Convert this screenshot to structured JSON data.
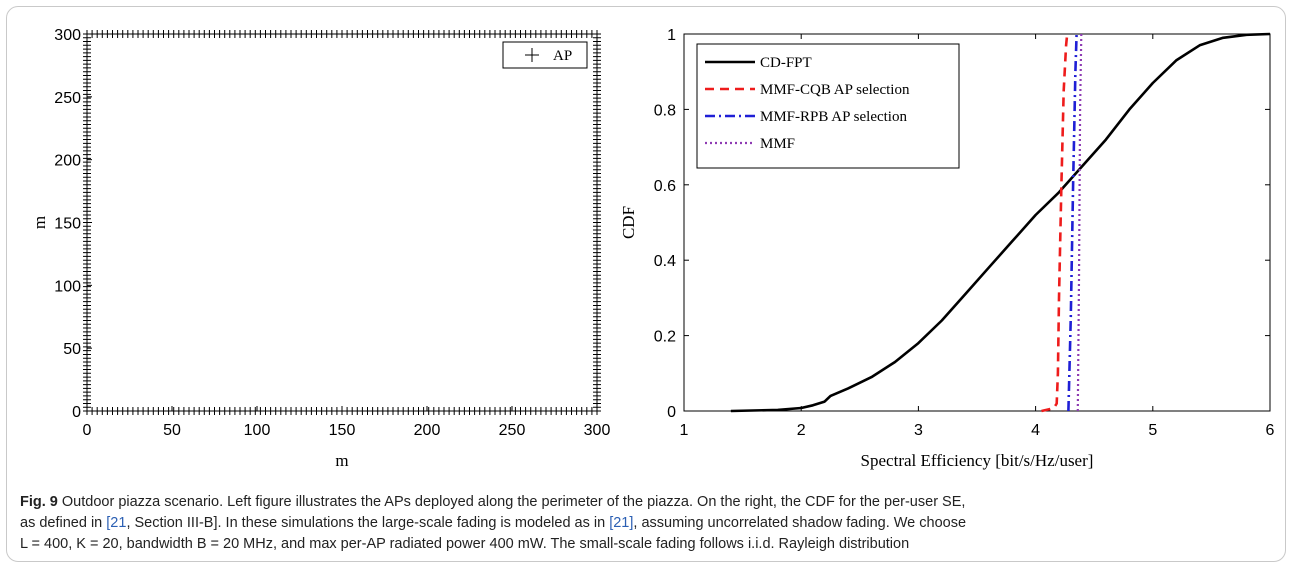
{
  "chart_data": [
    {
      "type": "scatter",
      "title": "",
      "xlabel": "m",
      "ylabel": "m",
      "xlim": [
        0,
        300
      ],
      "ylim": [
        0,
        300
      ],
      "xticks": [
        0,
        50,
        100,
        150,
        200,
        250,
        300
      ],
      "yticks": [
        0,
        50,
        100,
        150,
        200,
        250,
        300
      ],
      "legend": {
        "position": "top-right",
        "entries": [
          "AP"
        ]
      },
      "series": [
        {
          "name": "AP",
          "marker": "+",
          "color": "#000000",
          "layout": "100 APs evenly spaced along each side of the 300 m x 300 m square perimeter (L = 400)",
          "count": 400
        }
      ]
    },
    {
      "type": "line",
      "title": "",
      "xlabel": "Spectral Efficiency [bit/s/Hz/user]",
      "ylabel": "CDF",
      "xlim": [
        1,
        6
      ],
      "ylim": [
        0,
        1
      ],
      "xticks": [
        1,
        2,
        3,
        4,
        5,
        6
      ],
      "yticks": [
        0,
        0.2,
        0.4,
        0.6,
        0.8,
        1
      ],
      "legend": {
        "position": "top-left"
      },
      "series": [
        {
          "name": "CD-FPT",
          "color": "#000000",
          "style": "solid",
          "x": [
            1.4,
            1.8,
            2.0,
            2.1,
            2.2,
            2.25,
            2.4,
            2.6,
            2.8,
            3.0,
            3.2,
            3.4,
            3.6,
            3.8,
            4.0,
            4.2,
            4.4,
            4.6,
            4.8,
            5.0,
            5.2,
            5.4,
            5.6,
            5.8,
            6.0
          ],
          "y": [
            0.0,
            0.003,
            0.008,
            0.015,
            0.025,
            0.04,
            0.06,
            0.09,
            0.13,
            0.18,
            0.24,
            0.31,
            0.38,
            0.45,
            0.52,
            0.58,
            0.65,
            0.72,
            0.8,
            0.87,
            0.93,
            0.97,
            0.99,
            0.998,
            1.0
          ]
        },
        {
          "name": "MMF-CQB AP selection",
          "color": "#ee1c1c",
          "style": "dashed",
          "x": [
            4.05,
            4.12,
            4.16,
            4.18,
            4.19,
            4.2,
            4.22,
            4.24,
            4.26,
            4.27
          ],
          "y": [
            0.0,
            0.005,
            0.01,
            0.02,
            0.1,
            0.3,
            0.6,
            0.85,
            0.97,
            1.0
          ]
        },
        {
          "name": "MMF-RPB AP selection",
          "color": "#1f1fd6",
          "style": "dashdot",
          "x": [
            4.28,
            4.3,
            4.32,
            4.34,
            4.35
          ],
          "y": [
            0.0,
            0.25,
            0.6,
            0.9,
            1.0
          ]
        },
        {
          "name": "MMF",
          "color": "#8e3bb3",
          "style": "dotted",
          "x": [
            4.36,
            4.37,
            4.38,
            4.39
          ],
          "y": [
            0.0,
            0.35,
            0.8,
            1.0
          ]
        }
      ]
    }
  ],
  "caption": {
    "label": "Fig. 9",
    "line1": "Outdoor piazza scenario. Left figure illustrates the APs deployed along the perimeter of the piazza. On the right, the CDF for the per-user SE,",
    "line2_pre": "as defined in ",
    "line2_ref": "[21",
    "line2_mid": ", Section III-B]. In these simulations the large-scale fading is modeled as in ",
    "line2_ref2": "[21]",
    "line2_post": ", assuming uncorrelated shadow fading. We choose",
    "line3": "L = 400, K = 20, bandwidth B = 20 MHz, and max per-AP radiated power 400 mW. The small-scale fading follows i.i.d. Rayleigh distribution"
  }
}
